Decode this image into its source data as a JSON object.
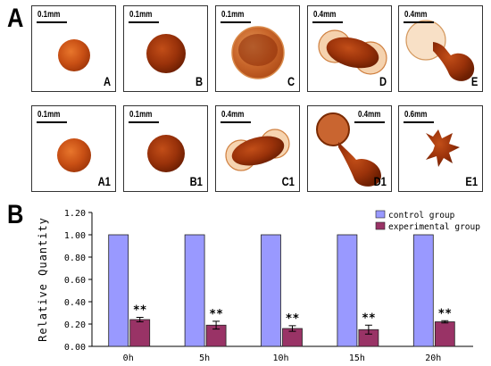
{
  "panel_labels": {
    "a": "A",
    "b": "B"
  },
  "images": [
    {
      "label": "A",
      "scale": "0.1mm"
    },
    {
      "label": "B",
      "scale": "0.1mm"
    },
    {
      "label": "C",
      "scale": "0.1mm"
    },
    {
      "label": "D",
      "scale": "0.4mm"
    },
    {
      "label": "E",
      "scale": "0.4mm"
    },
    {
      "label": "A1",
      "scale": "0.1mm"
    },
    {
      "label": "B1",
      "scale": "0.1mm"
    },
    {
      "label": "C1",
      "scale": "0.4mm"
    },
    {
      "label": "D1",
      "scale": "0.4mm"
    },
    {
      "label": "E1",
      "scale": "0.6mm"
    }
  ],
  "chart_data": {
    "type": "bar",
    "categories": [
      "0h",
      "5h",
      "10h",
      "15h",
      "20h"
    ],
    "series": [
      {
        "name": "control group",
        "values": [
          1.0,
          1.0,
          1.0,
          1.0,
          1.0
        ],
        "errors": [
          0,
          0,
          0,
          0,
          0
        ],
        "color": "#9999ff"
      },
      {
        "name": "experimental group",
        "values": [
          0.24,
          0.19,
          0.16,
          0.15,
          0.22
        ],
        "errors": [
          0.02,
          0.035,
          0.025,
          0.04,
          0.01
        ],
        "color": "#993366"
      }
    ],
    "annotations": [
      "**",
      "**",
      "**",
      "**",
      "**"
    ],
    "ylabel": "Relative Quantity",
    "yticks": [
      "0.00",
      "0.20",
      "0.40",
      "0.60",
      "0.80",
      "1.00",
      "1.20"
    ],
    "ylim": [
      0,
      1.2
    ],
    "legend_position": "top-right",
    "grid": false
  },
  "colors": {
    "tissue_dark": "#7a1f00",
    "tissue_mid": "#c44a10",
    "tissue_light": "#e8934a"
  }
}
